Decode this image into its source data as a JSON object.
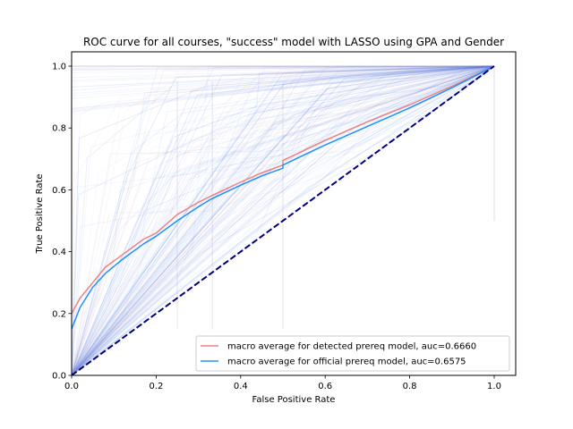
{
  "chart_data": {
    "type": "line",
    "title": "ROC curve for all courses, \"success\" model with LASSO using GPA and Gender",
    "xlabel": "False Positive Rate",
    "ylabel": "True Positive Rate",
    "xlim": [
      0.0,
      1.0
    ],
    "ylim": [
      0.0,
      1.0
    ],
    "xticks": [
      "0.0",
      "0.2",
      "0.4",
      "0.6",
      "0.8",
      "1.0"
    ],
    "yticks": [
      "0.0",
      "0.2",
      "0.4",
      "0.6",
      "0.8",
      "1.0"
    ],
    "grid": false,
    "legend_location": "lower-right",
    "series": [
      {
        "name": "macro average for detected prereq model, auc=0.6660",
        "color": "#f08080",
        "x": [
          0.0,
          0.02,
          0.05,
          0.08,
          0.12,
          0.17,
          0.2,
          0.25,
          0.3,
          0.33,
          0.4,
          0.45,
          0.5,
          0.5,
          0.6,
          0.7,
          0.8,
          0.9,
          1.0
        ],
        "y": [
          0.2,
          0.25,
          0.3,
          0.35,
          0.39,
          0.44,
          0.46,
          0.52,
          0.56,
          0.58,
          0.625,
          0.655,
          0.68,
          0.695,
          0.76,
          0.82,
          0.875,
          0.935,
          1.0
        ]
      },
      {
        "name": "macro average for official prereq model, auc=0.6575",
        "color": "#1e90ff",
        "x": [
          0.0,
          0.02,
          0.05,
          0.08,
          0.12,
          0.17,
          0.2,
          0.25,
          0.3,
          0.33,
          0.4,
          0.45,
          0.5,
          0.5,
          0.6,
          0.7,
          0.8,
          0.9,
          1.0
        ],
        "y": [
          0.15,
          0.22,
          0.285,
          0.33,
          0.375,
          0.425,
          0.45,
          0.5,
          0.545,
          0.57,
          0.615,
          0.645,
          0.67,
          0.68,
          0.745,
          0.805,
          0.865,
          0.93,
          1.0
        ]
      },
      {
        "name": "",
        "color": "#000080",
        "style": "dashed",
        "x": [
          0.0,
          1.0
        ],
        "y": [
          0.0,
          1.0
        ]
      }
    ]
  }
}
